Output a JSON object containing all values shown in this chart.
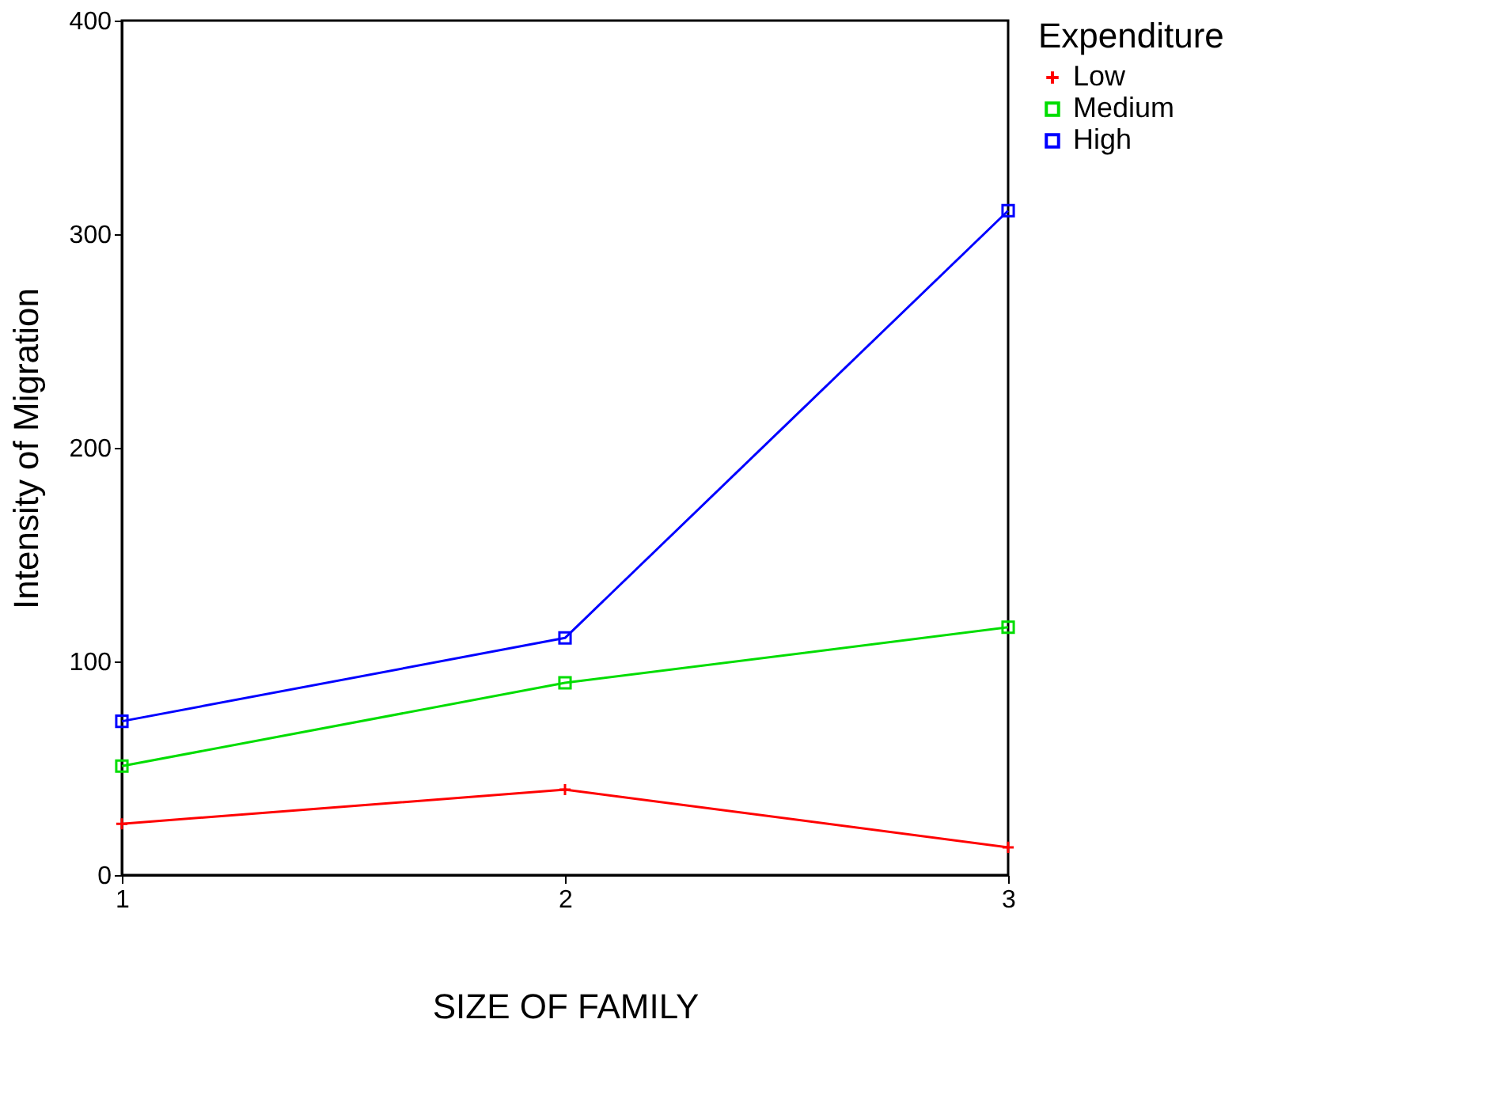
{
  "chart_data": {
    "type": "line",
    "xlabel": "SIZE OF FAMILY",
    "ylabel": "Intensity of Migration",
    "legend_title": "Expenditure",
    "legend": "right",
    "grid": false,
    "line_style": "solid",
    "x": [
      1,
      2,
      3
    ],
    "xlim": [
      1,
      3
    ],
    "xticks": [
      1,
      2,
      3
    ],
    "ylim": [
      0,
      400
    ],
    "yticks": [
      0,
      100,
      200,
      300,
      400
    ],
    "series": [
      {
        "name": "Low",
        "color": "#ff0000",
        "marker": "cross",
        "values": [
          24,
          40,
          13
        ]
      },
      {
        "name": "Medium",
        "color": "#00dd00",
        "marker": "square",
        "values": [
          51,
          90,
          116
        ]
      },
      {
        "name": "High",
        "color": "#0000ff",
        "marker": "square",
        "values": [
          72,
          111,
          311
        ]
      }
    ]
  }
}
